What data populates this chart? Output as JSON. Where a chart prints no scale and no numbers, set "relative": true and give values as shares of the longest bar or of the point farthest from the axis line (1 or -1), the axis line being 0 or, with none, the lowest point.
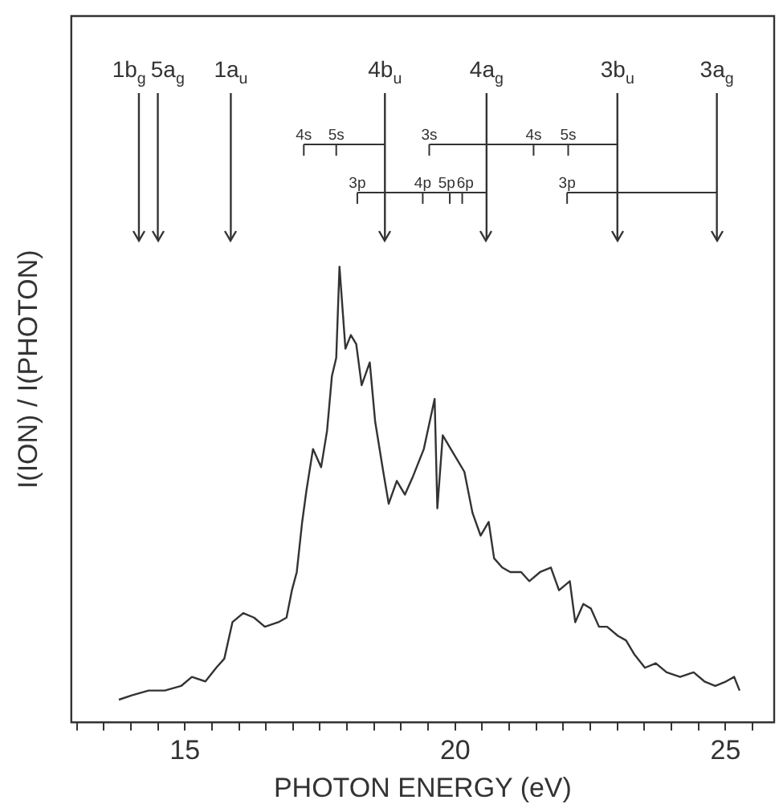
{
  "chart_data": {
    "type": "line",
    "relative": true,
    "xlabel": "PHOTON ENERGY (eV)",
    "ylabel": "I(ION) / I(PHOTON)",
    "xlim": [
      12.9,
      25.9
    ],
    "xticks": [
      {
        "value": 13,
        "label": null
      },
      {
        "value": 13.5,
        "label": null
      },
      {
        "value": 14,
        "label": null
      },
      {
        "value": 14.5,
        "label": null
      },
      15,
      {
        "value": 15.5,
        "label": null
      },
      {
        "value": 16,
        "label": null
      },
      {
        "value": 16.5,
        "label": null
      },
      {
        "value": 17,
        "label": null
      },
      {
        "value": 17.5,
        "label": null
      },
      {
        "value": 18,
        "label": null
      },
      {
        "value": 18.5,
        "label": null
      },
      {
        "value": 19,
        "label": null
      },
      {
        "value": 19.5,
        "label": null
      },
      20,
      {
        "value": 20.5,
        "label": null
      },
      {
        "value": 21,
        "label": null
      },
      {
        "value": 21.5,
        "label": null
      },
      {
        "value": 22,
        "label": null
      },
      {
        "value": 22.5,
        "label": null
      },
      {
        "value": 23,
        "label": null
      },
      {
        "value": 23.5,
        "label": null
      },
      {
        "value": 24,
        "label": null
      },
      {
        "value": 24.5,
        "label": null
      },
      25,
      {
        "value": 25.5,
        "label": null
      }
    ],
    "tick_labels": "x",
    "grid": false,
    "legend": false,
    "marker": "none",
    "line_style": "solid",
    "series": [
      {
        "color": "#333333",
        "x": [
          13.78,
          14.03,
          14.33,
          14.63,
          14.93,
          15.13,
          15.38,
          15.58,
          15.73,
          15.88,
          16.08,
          16.28,
          16.48,
          16.73,
          16.88,
          16.98,
          17.07,
          17.17,
          17.25,
          17.37,
          17.52,
          17.63,
          17.72,
          17.8,
          17.86,
          17.97,
          18.07,
          18.17,
          18.27,
          18.42,
          18.52,
          18.67,
          18.77,
          18.92,
          19.07,
          19.22,
          19.42,
          19.62,
          19.67,
          19.77,
          19.97,
          20.17,
          20.32,
          20.47,
          20.62,
          20.72,
          20.87,
          21.02,
          21.22,
          21.37,
          21.57,
          21.77,
          21.92,
          22.12,
          22.22,
          22.37,
          22.51,
          22.66,
          22.81,
          23.01,
          23.16,
          23.31,
          23.51,
          23.71,
          23.91,
          24.16,
          24.41,
          24.61,
          24.81,
          25.01,
          25.16,
          25.26
        ],
        "values": [
          0.05,
          0.06,
          0.07,
          0.07,
          0.08,
          0.1,
          0.09,
          0.12,
          0.14,
          0.22,
          0.24,
          0.23,
          0.21,
          0.22,
          0.23,
          0.29,
          0.33,
          0.44,
          0.51,
          0.6,
          0.56,
          0.64,
          0.76,
          0.8,
          1.0,
          0.82,
          0.85,
          0.83,
          0.74,
          0.79,
          0.66,
          0.55,
          0.48,
          0.53,
          0.5,
          0.54,
          0.6,
          0.71,
          0.47,
          0.63,
          0.59,
          0.55,
          0.46,
          0.41,
          0.44,
          0.36,
          0.34,
          0.33,
          0.33,
          0.31,
          0.33,
          0.34,
          0.29,
          0.31,
          0.22,
          0.26,
          0.25,
          0.21,
          0.21,
          0.19,
          0.18,
          0.15,
          0.12,
          0.13,
          0.11,
          0.1,
          0.11,
          0.09,
          0.08,
          0.09,
          0.1,
          0.07
        ]
      }
    ],
    "ref_lines": [
      {
        "axis": "x",
        "value": 14.15,
        "label": "1b$_{g}$",
        "line_style": "solid"
      },
      {
        "axis": "x",
        "value": 14.5,
        "label": "5a$_{g}$",
        "line_style": "solid"
      },
      {
        "axis": "x",
        "value": 15.85,
        "label": "1a$_{u}$",
        "line_style": "solid"
      },
      {
        "axis": "x",
        "value": 17.2,
        "label": "4s"
      },
      {
        "axis": "x",
        "value": 17.8,
        "label": "5s"
      },
      {
        "axis": "x",
        "value": 18.7,
        "label": "4b$_{u}$",
        "line_style": "solid"
      },
      {
        "axis": "x",
        "value": 18.19,
        "label": "3p"
      },
      {
        "axis": "x",
        "value": 19.4,
        "label": "4p"
      },
      {
        "axis": "x",
        "value": 19.9,
        "label": "5p"
      },
      {
        "axis": "x",
        "value": 20.13,
        "label": "6p"
      },
      {
        "axis": "x",
        "value": 20.58,
        "label": "4a$_{g}$",
        "line_style": "solid"
      },
      {
        "axis": "x",
        "value": 19.52,
        "label": "3s"
      },
      {
        "axis": "x",
        "value": 21.45,
        "label": "4s"
      },
      {
        "axis": "x",
        "value": 22.09,
        "label": "5s"
      },
      {
        "axis": "x",
        "value": 23.0,
        "label": "3b$_{u}$",
        "line_style": "solid"
      },
      {
        "axis": "x",
        "value": 22.07,
        "label": "3p"
      },
      {
        "axis": "x",
        "value": 24.84,
        "label": "3a$_{g}$",
        "line_style": "solid"
      }
    ]
  }
}
